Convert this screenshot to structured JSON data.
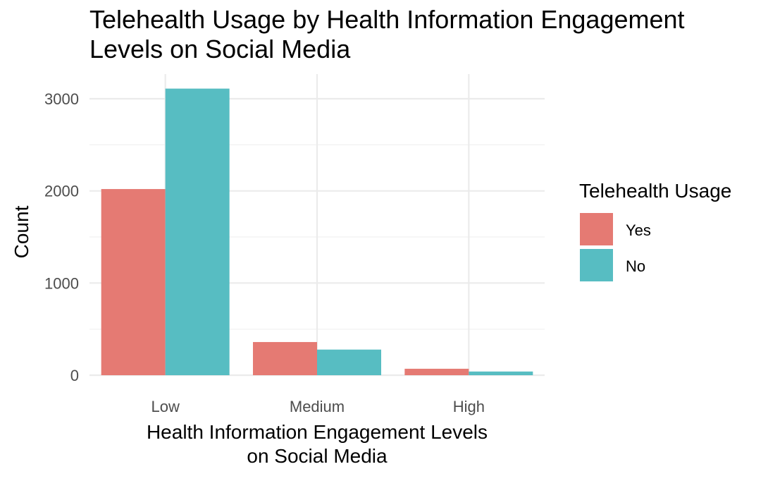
{
  "chart_data": {
    "type": "bar",
    "title_lines": [
      "Telehealth Usage by Health Information Engagement",
      "Levels on Social Media"
    ],
    "xlabel_lines": [
      "Health Information Engagement Levels",
      "on Social Media"
    ],
    "ylabel": "Count",
    "categories": [
      "Low",
      "Medium",
      "High"
    ],
    "series": [
      {
        "name": "Yes",
        "values": [
          2020,
          360,
          70
        ],
        "color": "#E57A73"
      },
      {
        "name": "No",
        "values": [
          3110,
          278,
          40
        ],
        "color": "#57BDC2"
      }
    ],
    "ylim": [
      0,
      3100
    ],
    "yticks": [
      0,
      1000,
      2000,
      3000
    ],
    "ytick_labels": [
      "0",
      "1000",
      "2000",
      "3000"
    ],
    "grid": true,
    "legend": {
      "title": "Telehealth Usage",
      "position": "right",
      "entries": [
        "Yes",
        "No"
      ]
    }
  }
}
